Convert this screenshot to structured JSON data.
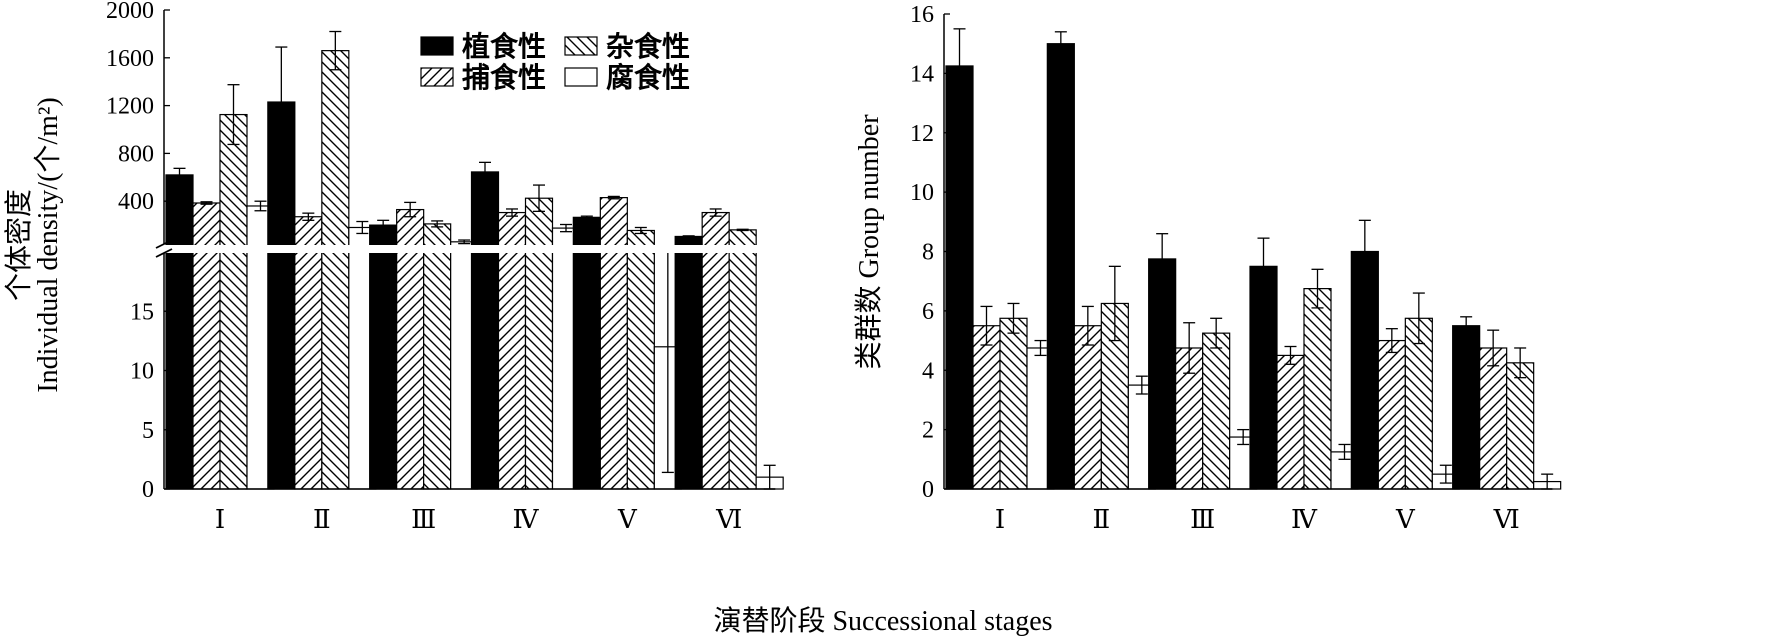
{
  "chart_data": [
    {
      "type": "bar",
      "ylabel": "个体密度/(个/m²)",
      "ylabel_line1": "个体密度",
      "ylabel_line2": "Individual density/(个/m²)",
      "axis_break": true,
      "lower_axis": {
        "ylim": [
          0,
          20
        ],
        "ticks": [
          "0",
          "5",
          "10",
          "15"
        ]
      },
      "upper_axis": {
        "ylim": [
          0,
          2000
        ],
        "ticks": [
          "400",
          "800",
          "1200",
          "1600",
          "2000"
        ]
      },
      "categories": [
        "Ⅰ",
        "Ⅱ",
        "Ⅲ",
        "Ⅳ",
        "Ⅴ",
        "Ⅵ"
      ],
      "series": [
        {
          "name": "植食性",
          "values": [
            620,
            1230,
            200,
            645,
            265,
            105
          ],
          "errors": [
            55,
            460,
            40,
            80,
            10,
            5
          ]
        },
        {
          "name": "捕食性",
          "values": [
            385,
            270,
            330,
            305,
            430,
            305
          ],
          "errors": [
            10,
            30,
            60,
            30,
            10,
            30
          ]
        },
        {
          "name": "杂食性",
          "values": [
            1125,
            1660,
            210,
            425,
            155,
            160
          ],
          "errors": [
            250,
            160,
            25,
            110,
            25,
            5
          ]
        },
        {
          "name": "腐食性",
          "values": [
            360,
            180,
            60,
            175,
            12,
            1
          ],
          "errors": [
            40,
            50,
            15,
            30,
            10.6,
            1
          ]
        }
      ]
    },
    {
      "type": "bar",
      "ylabel": "类群数 Group number",
      "ylim": [
        0,
        16
      ],
      "ticks": [
        "0",
        "2",
        "4",
        "6",
        "8",
        "10",
        "12",
        "14",
        "16"
      ],
      "categories": [
        "Ⅰ",
        "Ⅱ",
        "Ⅲ",
        "Ⅳ",
        "Ⅴ",
        "Ⅵ"
      ],
      "series": [
        {
          "name": "植食性",
          "values": [
            14.25,
            15.0,
            7.75,
            7.5,
            8.0,
            5.5
          ],
          "errors": [
            1.25,
            0.4,
            0.85,
            0.95,
            1.05,
            0.3
          ]
        },
        {
          "name": "捕食性",
          "values": [
            5.5,
            5.5,
            4.75,
            4.5,
            5.0,
            4.75
          ],
          "errors": [
            0.65,
            0.65,
            0.85,
            0.3,
            0.4,
            0.6
          ]
        },
        {
          "name": "杂食性",
          "values": [
            5.75,
            6.25,
            5.25,
            6.75,
            5.75,
            4.25
          ],
          "errors": [
            0.5,
            1.25,
            0.5,
            0.65,
            0.85,
            0.5
          ]
        },
        {
          "name": "腐食性",
          "values": [
            4.75,
            3.5,
            1.75,
            1.25,
            0.5,
            0.25
          ],
          "errors": [
            0.25,
            0.3,
            0.25,
            0.25,
            0.3,
            0.25
          ]
        }
      ]
    }
  ],
  "shared_xlabel": "演替阶段 Successional stages",
  "legend": [
    {
      "name": "植食性",
      "pattern": "solid"
    },
    {
      "name": "杂食性",
      "pattern": "backslash-hatch"
    },
    {
      "name": "捕食性",
      "pattern": "slash-hatch"
    },
    {
      "name": "腐食性",
      "pattern": "empty"
    }
  ]
}
